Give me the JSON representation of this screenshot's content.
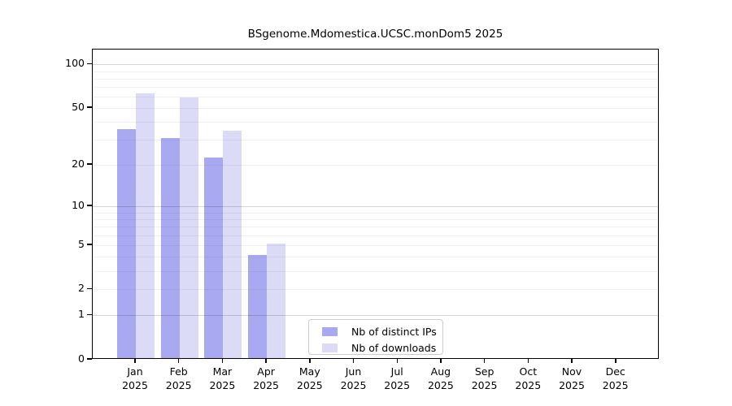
{
  "chart_data": {
    "type": "bar",
    "title": "BSgenome.Mdomestica.UCSC.monDom5 2025",
    "categories": [
      "Jan",
      "Feb",
      "Mar",
      "Apr",
      "May",
      "Jun",
      "Jul",
      "Aug",
      "Sep",
      "Oct",
      "Nov",
      "Dec"
    ],
    "category_year": "2025",
    "series": [
      {
        "name": "Nb of distinct IPs",
        "color": "#a9a9f1",
        "values": [
          35,
          30,
          22,
          4,
          0,
          0,
          0,
          0,
          0,
          0,
          0,
          0
        ]
      },
      {
        "name": "Nb of downloads",
        "color": "#dbdbf8",
        "values": [
          62,
          58,
          34,
          5,
          0,
          0,
          0,
          0,
          0,
          0,
          0,
          0
        ]
      }
    ],
    "xlabel": "",
    "ylabel": "",
    "yscale": "log1p",
    "ylim": [
      0,
      127
    ],
    "yticks": [
      0,
      1,
      2,
      5,
      10,
      20,
      50,
      100
    ],
    "grid": {
      "on": true,
      "minor_lines": [
        2,
        3,
        4,
        5,
        6,
        7,
        8,
        9,
        20,
        30,
        40,
        50,
        60,
        70,
        80,
        90
      ],
      "major_lines": [
        1,
        10,
        100
      ]
    },
    "legend": {
      "position": "bottom-center-inside"
    },
    "colors": {
      "axis": "#000000",
      "background": "#ffffff",
      "legend_border": "#cccccc"
    }
  }
}
